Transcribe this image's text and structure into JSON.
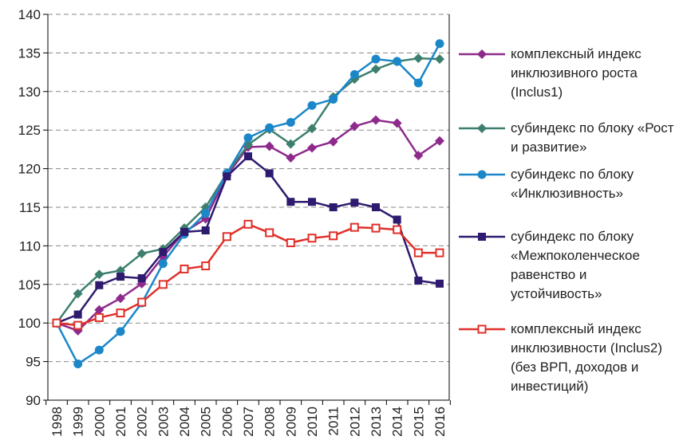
{
  "chart_data": {
    "type": "line",
    "categories": [
      "1998",
      "1999",
      "2000",
      "2001",
      "2002",
      "2003",
      "2004",
      "2005",
      "2006",
      "2007",
      "2008",
      "2009",
      "2010",
      "2011",
      "2012",
      "2013",
      "2014",
      "2015",
      "2016"
    ],
    "ylim": [
      90,
      140
    ],
    "yticks": [
      90,
      95,
      100,
      105,
      110,
      115,
      120,
      125,
      130,
      135,
      140
    ],
    "grid": true,
    "legend": "right",
    "series": [
      {
        "name": "комплексный индекс инклюзивного роста (Inclus1)",
        "color": "#8e2a8c",
        "marker": "diamond",
        "values": [
          100,
          99.0,
          101.7,
          103.2,
          105.1,
          108.6,
          111.8,
          113.5,
          119.1,
          122.8,
          122.9,
          121.4,
          122.7,
          123.5,
          125.5,
          126.3,
          125.9,
          121.7,
          123.6
        ]
      },
      {
        "name": "субиндекс по блоку «Рост и развитие»",
        "color": "#3d7f6e",
        "marker": "diamond",
        "values": [
          100,
          103.8,
          106.3,
          106.8,
          109.0,
          109.6,
          112.3,
          115.0,
          119.4,
          123.1,
          125.1,
          123.2,
          125.2,
          129.3,
          131.6,
          132.9,
          133.9,
          134.3,
          134.2
        ]
      },
      {
        "name": "субиндекс по блоку «Инклюзивность»",
        "color": "#1b87c9",
        "marker": "circle",
        "values": [
          100,
          94.7,
          96.5,
          98.9,
          102.6,
          107.7,
          111.5,
          114.2,
          119.4,
          124.0,
          125.3,
          126.0,
          128.2,
          129.0,
          132.2,
          134.2,
          133.9,
          131.1,
          136.2
        ]
      },
      {
        "name": "субиндекс по блоку «Межпоколенческое равенство и устойчивость»",
        "color": "#2e1a6e",
        "marker": "square",
        "values": [
          100,
          101.1,
          104.9,
          106.0,
          105.8,
          109.2,
          111.8,
          112.0,
          119.0,
          121.6,
          119.4,
          115.7,
          115.7,
          115.0,
          115.6,
          115.0,
          113.4,
          105.5,
          105.1
        ]
      },
      {
        "name": "комплексный индекс инклюзивности (Inclus2) (без ВРП, доходов и инвестиций)",
        "color": "#e0302a",
        "marker": "square-open",
        "values": [
          100,
          99.7,
          100.7,
          101.3,
          102.7,
          105.0,
          107.0,
          107.4,
          111.2,
          112.8,
          111.7,
          110.4,
          111.0,
          111.3,
          112.4,
          112.3,
          112.1,
          109.1,
          109.1
        ]
      }
    ]
  }
}
